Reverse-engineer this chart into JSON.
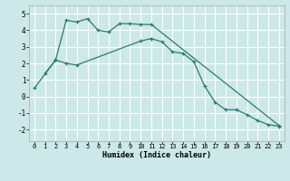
{
  "xlabel": "Humidex (Indice chaleur)",
  "line_color": "#2d7a6e",
  "bg_color": "#cce8e8",
  "grid_color": "#ffffff",
  "line1": {
    "x": [
      0,
      2,
      3,
      4,
      5,
      6,
      7,
      8,
      9,
      10,
      11,
      23
    ],
    "y": [
      0.5,
      2.2,
      4.6,
      4.5,
      4.7,
      4.0,
      3.9,
      4.4,
      4.4,
      4.35,
      4.35,
      -1.75
    ]
  },
  "line2": {
    "x": [
      1,
      2,
      3,
      4,
      10,
      11,
      12,
      13,
      14,
      15,
      16,
      17,
      18,
      19,
      20,
      21,
      22,
      23
    ],
    "y": [
      1.4,
      2.2,
      2.0,
      1.9,
      3.35,
      3.5,
      3.3,
      2.7,
      2.6,
      2.1,
      0.65,
      -0.35,
      -0.8,
      -0.8,
      -1.1,
      -1.45,
      -1.7,
      -1.8
    ]
  },
  "xlim": [
    -0.5,
    23.5
  ],
  "ylim": [
    -2.7,
    5.5
  ],
  "yticks": [
    -2,
    -1,
    0,
    1,
    2,
    3,
    4,
    5
  ],
  "xticks": [
    0,
    1,
    2,
    3,
    4,
    5,
    6,
    7,
    8,
    9,
    10,
    11,
    12,
    13,
    14,
    15,
    16,
    17,
    18,
    19,
    20,
    21,
    22,
    23
  ]
}
